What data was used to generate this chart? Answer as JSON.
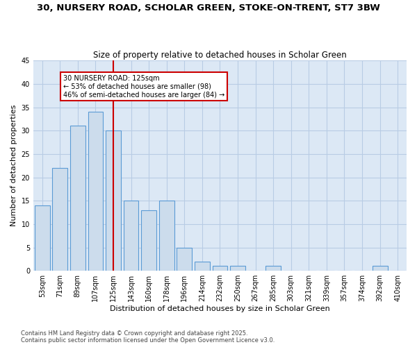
{
  "title": "30, NURSERY ROAD, SCHOLAR GREEN, STOKE-ON-TRENT, ST7 3BW",
  "subtitle": "Size of property relative to detached houses in Scholar Green",
  "xlabel": "Distribution of detached houses by size in Scholar Green",
  "ylabel": "Number of detached properties",
  "bar_labels": [
    "53sqm",
    "71sqm",
    "89sqm",
    "107sqm",
    "125sqm",
    "143sqm",
    "160sqm",
    "178sqm",
    "196sqm",
    "214sqm",
    "232sqm",
    "250sqm",
    "267sqm",
    "285sqm",
    "303sqm",
    "321sqm",
    "339sqm",
    "357sqm",
    "374sqm",
    "392sqm",
    "410sqm"
  ],
  "bar_values": [
    14,
    22,
    31,
    34,
    30,
    15,
    13,
    15,
    5,
    2,
    1,
    1,
    0,
    1,
    0,
    0,
    0,
    0,
    0,
    1,
    0
  ],
  "bar_color": "#ccdcec",
  "bar_edge_color": "#5b9bd5",
  "grid_color": "#b8cce4",
  "background_color": "#dce8f5",
  "vline_index": 4,
  "vline_color": "#cc0000",
  "annotation_text": "30 NURSERY ROAD: 125sqm\n← 53% of detached houses are smaller (98)\n46% of semi-detached houses are larger (84) →",
  "annotation_box_edgecolor": "#cc0000",
  "ylim": [
    0,
    45
  ],
  "yticks": [
    0,
    5,
    10,
    15,
    20,
    25,
    30,
    35,
    40,
    45
  ],
  "footnote": "Contains HM Land Registry data © Crown copyright and database right 2025.\nContains public sector information licensed under the Open Government Licence v3.0.",
  "title_fontsize": 9.5,
  "subtitle_fontsize": 8.5,
  "axis_label_fontsize": 8,
  "tick_fontsize": 7,
  "annotation_fontsize": 7,
  "footnote_fontsize": 6
}
